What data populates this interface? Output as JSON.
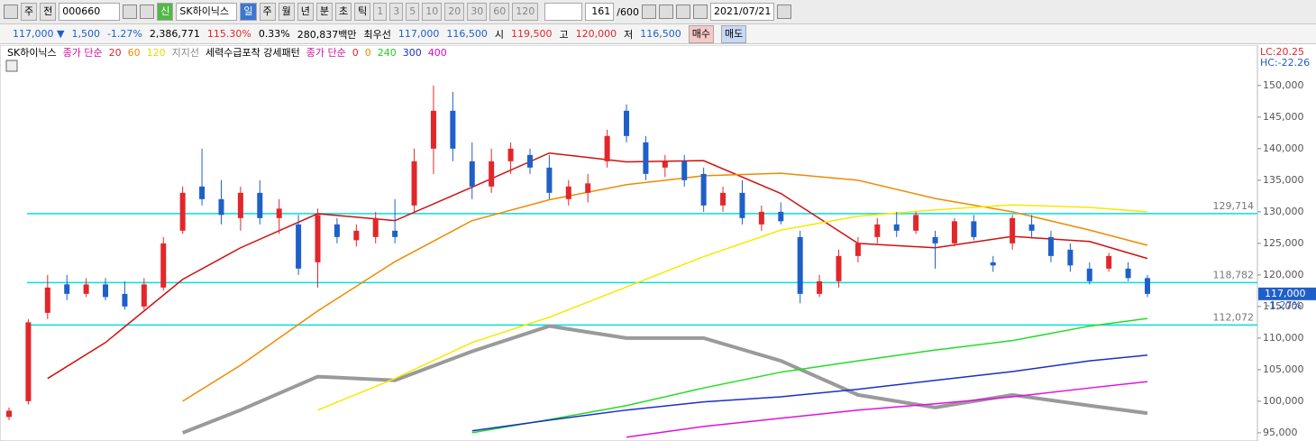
{
  "toolbar": {
    "items": [
      "주",
      "전",
      "000660",
      "SK하이닉스",
      "신",
      "일",
      "주",
      "월",
      "년",
      "분",
      "초",
      "틱",
      "1",
      "3",
      "5",
      "10",
      "20",
      "30",
      "60",
      "120",
      "161",
      "/600",
      "2021/07/21"
    ]
  },
  "info": {
    "items": [
      "117,000 ▼",
      "1,500",
      "-1.27%",
      "2,386,771",
      "115.30%",
      "0.33%",
      "280,837백만",
      "최우선",
      "117,000",
      "116,500",
      "시",
      "119,500",
      "고",
      "120,000",
      "저",
      "116,500",
      "매수",
      "매도"
    ]
  },
  "legend": {
    "items": [
      {
        "text": "SK하이닉스",
        "color": "#000000"
      },
      {
        "text": "종가 단순",
        "color": "#d0109a"
      },
      {
        "text": "20",
        "color": "#e3262a"
      },
      {
        "text": "60",
        "color": "#f08a00"
      },
      {
        "text": "120",
        "color": "#e8d800"
      },
      {
        "text": "지지선",
        "color": "#888888"
      },
      {
        "text": "세력수급포착 강세패턴",
        "color": "#000000"
      },
      {
        "text": "종가 단순",
        "color": "#d0109a"
      },
      {
        "text": "0",
        "color": "#e3262a"
      },
      {
        "text": "0",
        "color": "#f08a00"
      },
      {
        "text": "240",
        "color": "#22cc22"
      },
      {
        "text": "300",
        "color": "#1a2fc8"
      },
      {
        "text": "400",
        "color": "#d010d0"
      }
    ]
  },
  "chart_data": {
    "type": "candlestick",
    "up_color": "#e3262a",
    "down_color": "#1f5fc8",
    "ylim": [
      93700,
      156400
    ],
    "yticks": [
      {
        "value": 95000,
        "label": "95,000"
      },
      {
        "value": 100000,
        "label": "100,000"
      },
      {
        "value": 105000,
        "label": "105,000"
      },
      {
        "value": 110000,
        "label": "110,000"
      },
      {
        "value": 115000,
        "label": "115,000"
      },
      {
        "value": 120000,
        "label": "120,000"
      },
      {
        "value": 125000,
        "label": "125,000"
      },
      {
        "value": 130000,
        "label": "130,000"
      },
      {
        "value": 135000,
        "label": "135,000"
      },
      {
        "value": 140000,
        "label": "140,000"
      },
      {
        "value": 145000,
        "label": "145,000"
      },
      {
        "value": 150000,
        "label": "150,000"
      }
    ],
    "candles": [
      [
        97500,
        99000,
        97000,
        98500
      ],
      [
        100000,
        113000,
        99500,
        112500
      ],
      [
        114000,
        120000,
        113000,
        118000
      ],
      [
        118500,
        120000,
        116000,
        117000
      ],
      [
        117000,
        119500,
        116500,
        118500
      ],
      [
        118500,
        119500,
        116000,
        116500
      ],
      [
        117000,
        119000,
        114500,
        115000
      ],
      [
        115000,
        119500,
        114500,
        118500
      ],
      [
        118000,
        126000,
        117500,
        125000
      ],
      [
        127000,
        134000,
        126500,
        133000
      ],
      [
        134000,
        140000,
        131000,
        132000
      ],
      [
        132000,
        135000,
        128000,
        129500
      ],
      [
        129000,
        134000,
        127000,
        133000
      ],
      [
        133000,
        135000,
        128000,
        129000
      ],
      [
        129000,
        132000,
        126500,
        130500
      ],
      [
        128000,
        129500,
        120000,
        121000
      ],
      [
        122000,
        130500,
        118000,
        129500
      ],
      [
        128000,
        129000,
        125000,
        126000
      ],
      [
        125500,
        128000,
        124500,
        127000
      ],
      [
        126000,
        130000,
        125000,
        129000
      ],
      [
        127000,
        132000,
        125000,
        126000
      ],
      [
        131000,
        140000,
        130000,
        138000
      ],
      [
        140000,
        150000,
        136000,
        146000
      ],
      [
        146000,
        149000,
        138000,
        140000
      ],
      [
        138000,
        141000,
        132000,
        134000
      ],
      [
        134000,
        140000,
        133000,
        138000
      ],
      [
        138000,
        141000,
        136000,
        140000
      ],
      [
        139000,
        140000,
        136000,
        137000
      ],
      [
        137000,
        139000,
        132000,
        133000
      ],
      [
        132000,
        135000,
        131000,
        134000
      ],
      [
        133000,
        136000,
        131500,
        134500
      ],
      [
        138000,
        143000,
        137000,
        142000
      ],
      [
        146000,
        147000,
        141000,
        142000
      ],
      [
        141000,
        142000,
        135000,
        136000
      ],
      [
        137000,
        139000,
        135500,
        138000
      ],
      [
        138000,
        139000,
        134000,
        135000
      ],
      [
        136000,
        137000,
        130000,
        131000
      ],
      [
        131000,
        134000,
        130000,
        133000
      ],
      [
        133000,
        135000,
        128000,
        129000
      ],
      [
        128000,
        131000,
        127000,
        130000
      ],
      [
        130000,
        131500,
        128000,
        128500
      ],
      [
        126000,
        127000,
        115500,
        117000
      ],
      [
        117000,
        120000,
        116500,
        119000
      ],
      [
        119000,
        124000,
        118000,
        123000
      ],
      [
        123000,
        126000,
        122000,
        125000
      ],
      [
        126000,
        129000,
        125000,
        128000
      ],
      [
        128000,
        130000,
        126000,
        127000
      ],
      [
        127000,
        130000,
        126500,
        129500
      ],
      [
        126000,
        127000,
        121000,
        125000
      ],
      [
        125000,
        129000,
        124500,
        128500
      ],
      [
        128500,
        129500,
        125500,
        126000
      ],
      [
        122000,
        123000,
        120500,
        121500
      ],
      [
        125000,
        129500,
        124000,
        129000
      ],
      [
        128000,
        129500,
        126000,
        127000
      ],
      [
        126000,
        127000,
        122000,
        123000
      ],
      [
        124000,
        125000,
        120500,
        121500
      ],
      [
        121000,
        122000,
        118500,
        119000
      ],
      [
        121000,
        123500,
        120500,
        123000
      ],
      [
        121000,
        122000,
        119000,
        119500
      ],
      [
        119500,
        120000,
        116500,
        117000
      ]
    ],
    "line_x": [
      2,
      5,
      9,
      12,
      16,
      20,
      24,
      28,
      32,
      36,
      40,
      44,
      48,
      52,
      56,
      59
    ],
    "band_line": {
      "color": "#9a9a9a",
      "values": [
        null,
        null,
        95000,
        98600,
        103900,
        103300,
        107900,
        111900,
        110000,
        110000,
        106400,
        101000,
        99000,
        101000,
        99300,
        98100
      ]
    },
    "series": [
      {
        "color": "#d01010",
        "values": [
          103600,
          109300,
          119300,
          124300,
          129700,
          128600,
          133900,
          139300,
          137900,
          138100,
          132900,
          125000,
          124300,
          126100,
          125300,
          122600
        ]
      },
      {
        "color": "#f08a00",
        "values": [
          null,
          null,
          100000,
          105700,
          114300,
          122100,
          128600,
          131900,
          134300,
          135700,
          136100,
          135000,
          132100,
          130000,
          127100,
          124700
        ]
      },
      {
        "color": "#f5ea00",
        "values": [
          null,
          null,
          null,
          null,
          98600,
          103600,
          109300,
          113300,
          118100,
          122900,
          127100,
          129300,
          130300,
          131100,
          130700,
          130000
        ]
      },
      {
        "color": "#22dd22",
        "values": [
          null,
          null,
          null,
          null,
          null,
          null,
          95000,
          97100,
          99300,
          102100,
          104600,
          106400,
          108100,
          109600,
          111900,
          113100
        ]
      },
      {
        "color": "#1a2fc8",
        "values": [
          null,
          null,
          null,
          null,
          null,
          null,
          95300,
          97000,
          98600,
          99900,
          100700,
          101900,
          103300,
          104700,
          106400,
          107300
        ]
      },
      {
        "color": "#e010e0",
        "values": [
          null,
          null,
          null,
          null,
          null,
          null,
          null,
          null,
          94300,
          96000,
          97300,
          98600,
          99600,
          100700,
          102100,
          103100
        ]
      }
    ],
    "hline_color": "#00e0e0",
    "hlines": [
      {
        "value": 129714,
        "label": "129,714"
      },
      {
        "value": 118782,
        "label": "118,782"
      },
      {
        "value": 112072,
        "label": "112,072"
      }
    ],
    "lc": "LC:20.25",
    "hc": "HC:-22.26",
    "last_label": "117,000",
    "last_change": "-1.27%"
  }
}
